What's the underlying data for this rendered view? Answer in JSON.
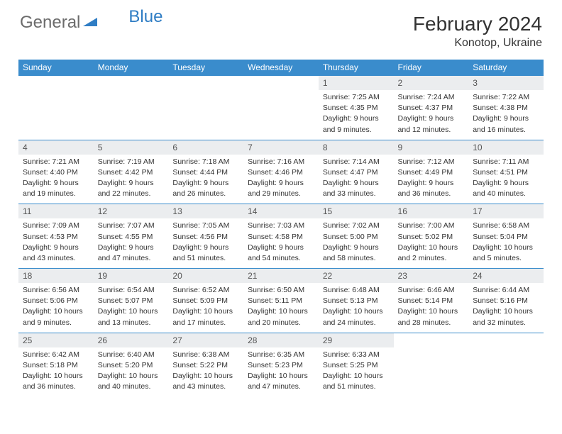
{
  "logo": {
    "text_gray": "General",
    "text_blue": "Blue"
  },
  "header": {
    "month": "February 2024",
    "location": "Konotop, Ukraine"
  },
  "colors": {
    "header_bg": "#3a8ccc",
    "daynum_bg": "#ebedef",
    "row_border": "#3a8ccc",
    "logo_gray": "#6b6b6b",
    "logo_blue": "#2f7dc4"
  },
  "day_headers": [
    "Sunday",
    "Monday",
    "Tuesday",
    "Wednesday",
    "Thursday",
    "Friday",
    "Saturday"
  ],
  "weeks": [
    {
      "nums": [
        "",
        "",
        "",
        "",
        "1",
        "2",
        "3"
      ],
      "cells": [
        null,
        null,
        null,
        null,
        {
          "sunrise": "Sunrise: 7:25 AM",
          "sunset": "Sunset: 4:35 PM",
          "dl1": "Daylight: 9 hours",
          "dl2": "and 9 minutes."
        },
        {
          "sunrise": "Sunrise: 7:24 AM",
          "sunset": "Sunset: 4:37 PM",
          "dl1": "Daylight: 9 hours",
          "dl2": "and 12 minutes."
        },
        {
          "sunrise": "Sunrise: 7:22 AM",
          "sunset": "Sunset: 4:38 PM",
          "dl1": "Daylight: 9 hours",
          "dl2": "and 16 minutes."
        }
      ]
    },
    {
      "nums": [
        "4",
        "5",
        "6",
        "7",
        "8",
        "9",
        "10"
      ],
      "cells": [
        {
          "sunrise": "Sunrise: 7:21 AM",
          "sunset": "Sunset: 4:40 PM",
          "dl1": "Daylight: 9 hours",
          "dl2": "and 19 minutes."
        },
        {
          "sunrise": "Sunrise: 7:19 AM",
          "sunset": "Sunset: 4:42 PM",
          "dl1": "Daylight: 9 hours",
          "dl2": "and 22 minutes."
        },
        {
          "sunrise": "Sunrise: 7:18 AM",
          "sunset": "Sunset: 4:44 PM",
          "dl1": "Daylight: 9 hours",
          "dl2": "and 26 minutes."
        },
        {
          "sunrise": "Sunrise: 7:16 AM",
          "sunset": "Sunset: 4:46 PM",
          "dl1": "Daylight: 9 hours",
          "dl2": "and 29 minutes."
        },
        {
          "sunrise": "Sunrise: 7:14 AM",
          "sunset": "Sunset: 4:47 PM",
          "dl1": "Daylight: 9 hours",
          "dl2": "and 33 minutes."
        },
        {
          "sunrise": "Sunrise: 7:12 AM",
          "sunset": "Sunset: 4:49 PM",
          "dl1": "Daylight: 9 hours",
          "dl2": "and 36 minutes."
        },
        {
          "sunrise": "Sunrise: 7:11 AM",
          "sunset": "Sunset: 4:51 PM",
          "dl1": "Daylight: 9 hours",
          "dl2": "and 40 minutes."
        }
      ]
    },
    {
      "nums": [
        "11",
        "12",
        "13",
        "14",
        "15",
        "16",
        "17"
      ],
      "cells": [
        {
          "sunrise": "Sunrise: 7:09 AM",
          "sunset": "Sunset: 4:53 PM",
          "dl1": "Daylight: 9 hours",
          "dl2": "and 43 minutes."
        },
        {
          "sunrise": "Sunrise: 7:07 AM",
          "sunset": "Sunset: 4:55 PM",
          "dl1": "Daylight: 9 hours",
          "dl2": "and 47 minutes."
        },
        {
          "sunrise": "Sunrise: 7:05 AM",
          "sunset": "Sunset: 4:56 PM",
          "dl1": "Daylight: 9 hours",
          "dl2": "and 51 minutes."
        },
        {
          "sunrise": "Sunrise: 7:03 AM",
          "sunset": "Sunset: 4:58 PM",
          "dl1": "Daylight: 9 hours",
          "dl2": "and 54 minutes."
        },
        {
          "sunrise": "Sunrise: 7:02 AM",
          "sunset": "Sunset: 5:00 PM",
          "dl1": "Daylight: 9 hours",
          "dl2": "and 58 minutes."
        },
        {
          "sunrise": "Sunrise: 7:00 AM",
          "sunset": "Sunset: 5:02 PM",
          "dl1": "Daylight: 10 hours",
          "dl2": "and 2 minutes."
        },
        {
          "sunrise": "Sunrise: 6:58 AM",
          "sunset": "Sunset: 5:04 PM",
          "dl1": "Daylight: 10 hours",
          "dl2": "and 5 minutes."
        }
      ]
    },
    {
      "nums": [
        "18",
        "19",
        "20",
        "21",
        "22",
        "23",
        "24"
      ],
      "cells": [
        {
          "sunrise": "Sunrise: 6:56 AM",
          "sunset": "Sunset: 5:06 PM",
          "dl1": "Daylight: 10 hours",
          "dl2": "and 9 minutes."
        },
        {
          "sunrise": "Sunrise: 6:54 AM",
          "sunset": "Sunset: 5:07 PM",
          "dl1": "Daylight: 10 hours",
          "dl2": "and 13 minutes."
        },
        {
          "sunrise": "Sunrise: 6:52 AM",
          "sunset": "Sunset: 5:09 PM",
          "dl1": "Daylight: 10 hours",
          "dl2": "and 17 minutes."
        },
        {
          "sunrise": "Sunrise: 6:50 AM",
          "sunset": "Sunset: 5:11 PM",
          "dl1": "Daylight: 10 hours",
          "dl2": "and 20 minutes."
        },
        {
          "sunrise": "Sunrise: 6:48 AM",
          "sunset": "Sunset: 5:13 PM",
          "dl1": "Daylight: 10 hours",
          "dl2": "and 24 minutes."
        },
        {
          "sunrise": "Sunrise: 6:46 AM",
          "sunset": "Sunset: 5:14 PM",
          "dl1": "Daylight: 10 hours",
          "dl2": "and 28 minutes."
        },
        {
          "sunrise": "Sunrise: 6:44 AM",
          "sunset": "Sunset: 5:16 PM",
          "dl1": "Daylight: 10 hours",
          "dl2": "and 32 minutes."
        }
      ]
    },
    {
      "nums": [
        "25",
        "26",
        "27",
        "28",
        "29",
        "",
        ""
      ],
      "cells": [
        {
          "sunrise": "Sunrise: 6:42 AM",
          "sunset": "Sunset: 5:18 PM",
          "dl1": "Daylight: 10 hours",
          "dl2": "and 36 minutes."
        },
        {
          "sunrise": "Sunrise: 6:40 AM",
          "sunset": "Sunset: 5:20 PM",
          "dl1": "Daylight: 10 hours",
          "dl2": "and 40 minutes."
        },
        {
          "sunrise": "Sunrise: 6:38 AM",
          "sunset": "Sunset: 5:22 PM",
          "dl1": "Daylight: 10 hours",
          "dl2": "and 43 minutes."
        },
        {
          "sunrise": "Sunrise: 6:35 AM",
          "sunset": "Sunset: 5:23 PM",
          "dl1": "Daylight: 10 hours",
          "dl2": "and 47 minutes."
        },
        {
          "sunrise": "Sunrise: 6:33 AM",
          "sunset": "Sunset: 5:25 PM",
          "dl1": "Daylight: 10 hours",
          "dl2": "and 51 minutes."
        },
        null,
        null
      ]
    }
  ]
}
